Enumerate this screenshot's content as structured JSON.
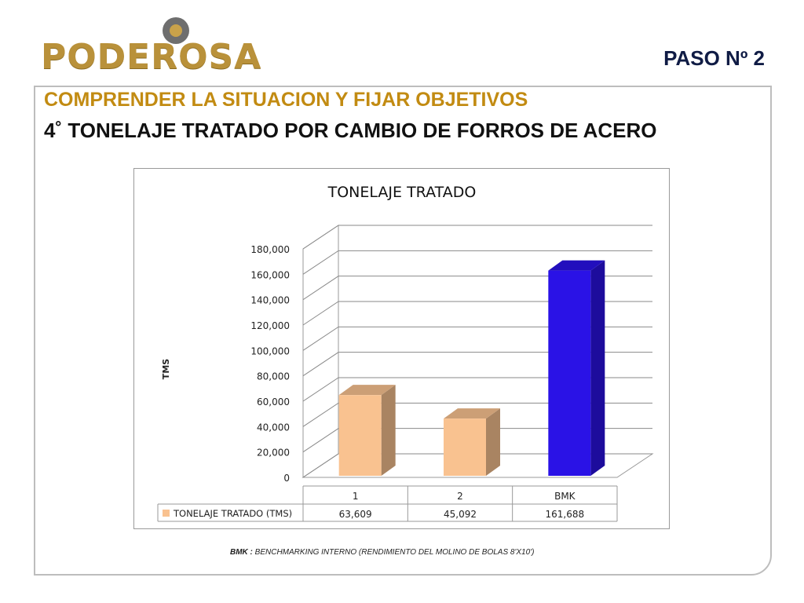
{
  "header": {
    "logo_text": "PODEROSA",
    "step_label": "PASO  Nº 2"
  },
  "slide": {
    "title": "COMPRENDER LA SITUACION Y FIJAR OBJETIVOS",
    "subtitle": "4˚  TONELAJE TRATADO POR CAMBIO DE FORROS DE ACERO",
    "note_prefix": "BMK :",
    "note_text": " BENCHMARKING INTERNO (RENDIMIENTO DEL MOLINO DE BOLAS 8'X10')"
  },
  "colors": {
    "title": "#c28b12",
    "bar_orange": "#f9c290",
    "bar_blue": "#2a12e6",
    "arrow": "#1a18e8"
  },
  "chart_data": {
    "type": "bar",
    "title": "TONELAJE TRATADO",
    "ylabel": "TMS",
    "xlabel": "",
    "categories": [
      "1",
      "2",
      "BMK"
    ],
    "series": [
      {
        "name": "TONELAJE TRATADO (TMS)",
        "values": [
          63609,
          45092,
          161688
        ]
      }
    ],
    "value_labels": [
      "63,609",
      "45,092",
      "161,688"
    ],
    "ylim": [
      0,
      180000
    ],
    "yticks": [
      "0",
      "20,000",
      "40,000",
      "60,000",
      "80,000",
      "100,000",
      "120,000",
      "140,000",
      "160,000",
      "180,000"
    ],
    "bar_colors": [
      "#f9c290",
      "#f9c290",
      "#2a12e6"
    ],
    "grid": true,
    "legend": "data-table"
  }
}
